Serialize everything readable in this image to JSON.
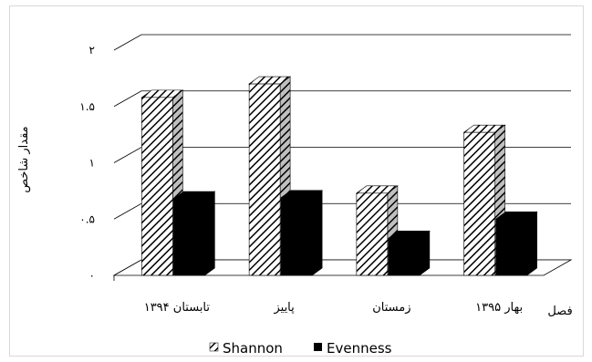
{
  "chart_data": {
    "type": "bar",
    "title": "",
    "categories": [
      "تابستان ۱۳۹۴",
      "پاییز",
      "زمستان",
      "بهار ۱۳۹۵"
    ],
    "series": [
      {
        "name": "Shannon",
        "values": [
          1.58,
          1.7,
          0.73,
          1.27
        ],
        "fill": "hatched"
      },
      {
        "name": "Evenness",
        "values": [
          0.68,
          0.69,
          0.33,
          0.5
        ],
        "fill": "#000000"
      }
    ],
    "ylim": [
      0,
      2
    ],
    "y_ticks": [
      "۰",
      "۰.۵",
      "۱",
      "۱.۵",
      "۲"
    ],
    "ylabel": "مقدار شاخص",
    "xlabel": "فصل",
    "grid": true,
    "legend_position": "bottom",
    "style": "3d"
  }
}
